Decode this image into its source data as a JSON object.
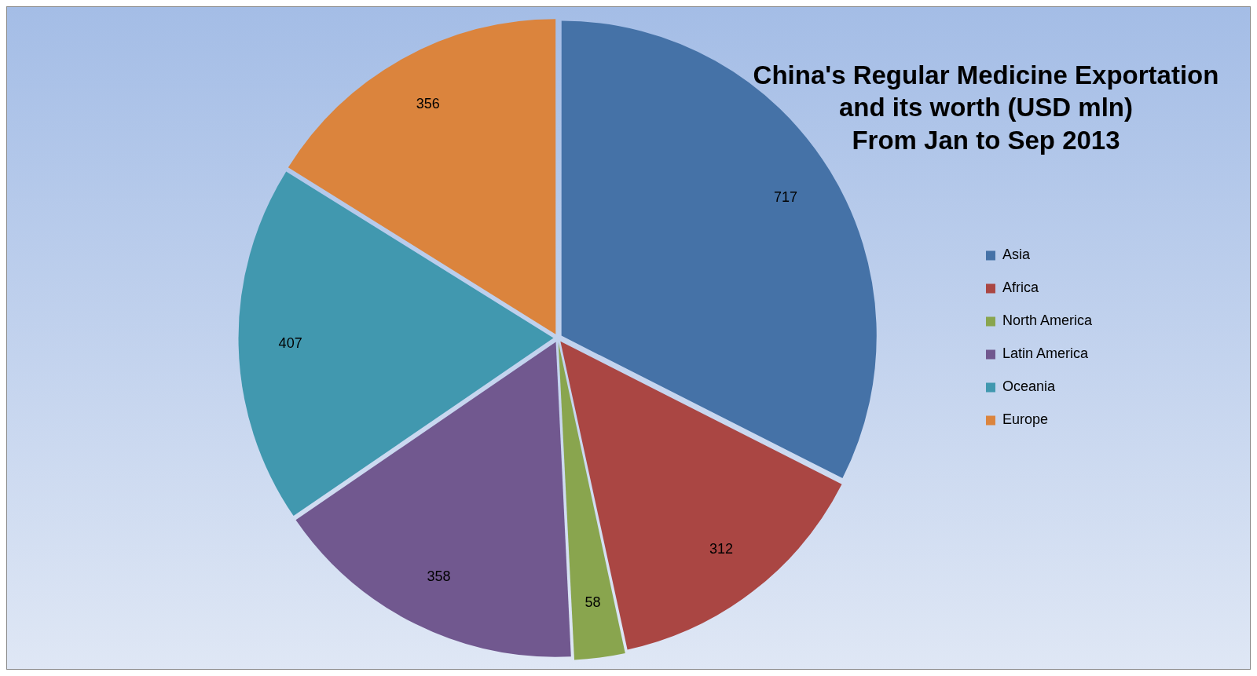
{
  "chart_data": {
    "type": "pie",
    "title": "China's Regular Medicine Exportation\nand its worth (USD mln)\nFrom Jan to Sep 2013",
    "categories": [
      "Asia",
      "Africa",
      "North America",
      "Latin America",
      "Oceania",
      "Europe"
    ],
    "values": [
      717,
      312,
      58,
      358,
      407,
      356
    ],
    "colors": [
      "#4572a7",
      "#aa4643",
      "#89a54e",
      "#71588f",
      "#4198af",
      "#db843d"
    ],
    "data_labels": true,
    "legend": "right"
  }
}
